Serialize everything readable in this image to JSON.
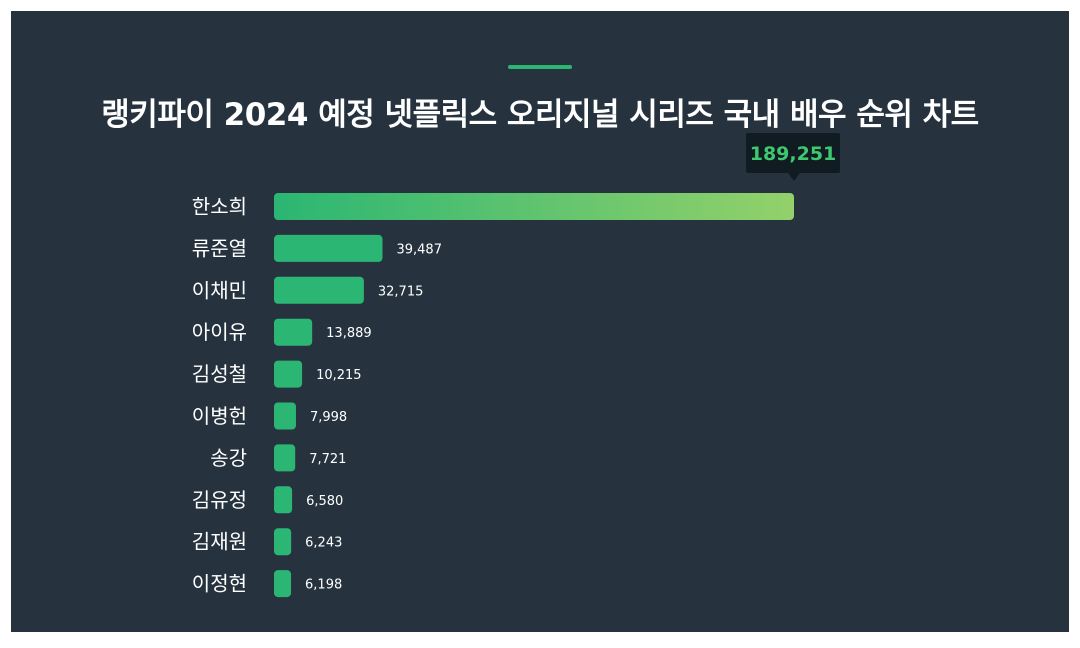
{
  "title": "랭키파이 2024 예정 넷플릭스 오리지널 시리즈 국내 배우 순위 차트",
  "colors": {
    "background": "#26333f",
    "accent": "#2bb673",
    "bar": "#2bb673",
    "top_bar_gradient_start": "#2bb673",
    "top_bar_gradient_end": "#93d16a",
    "tooltip_bg": "#111b22",
    "tooltip_text": "#3ec86f"
  },
  "chart_data": {
    "type": "bar",
    "orientation": "horizontal",
    "title": "랭키파이 2024 예정 넷플릭스 오리지널 시리즈 국내 배우 순위 차트",
    "categories": [
      "한소희",
      "류준열",
      "이채민",
      "아이유",
      "김성철",
      "이병헌",
      "송강",
      "김유정",
      "김재원",
      "이정현"
    ],
    "values": [
      189251,
      39487,
      32715,
      13889,
      10215,
      7998,
      7721,
      6580,
      6243,
      6198
    ],
    "value_labels": [
      "189,251",
      "39,487",
      "32,715",
      "13,889",
      "10,215",
      "7,998",
      "7,721",
      "6,580",
      "6,243",
      "6,198"
    ],
    "xlim": [
      0,
      189251
    ],
    "grid": false,
    "legend": "none",
    "highlight": {
      "index": 0,
      "label": "189,251",
      "style": "tooltip"
    }
  }
}
